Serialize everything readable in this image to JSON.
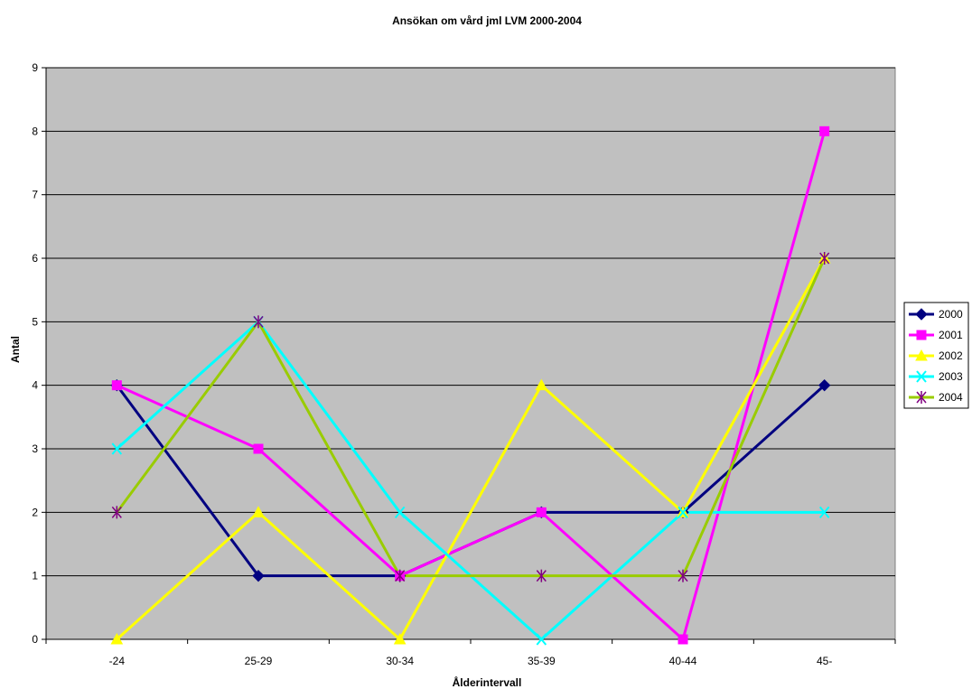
{
  "chart_data": {
    "type": "line",
    "title": "Ansökan om vård jml LVM 2000-2004",
    "xlabel": "Ålderintervall",
    "ylabel": "Antal",
    "categories": [
      "-24",
      "25-29",
      "30-34",
      "35-39",
      "40-44",
      "45-"
    ],
    "ylim": [
      0,
      9
    ],
    "yticks": [
      0,
      1,
      2,
      3,
      4,
      5,
      6,
      7,
      8,
      9
    ],
    "grid": true,
    "legend_position": "right",
    "plot_background": "#c0c0c0",
    "series": [
      {
        "name": "2000",
        "color": "#000080",
        "marker": "diamond",
        "values": [
          4,
          1,
          1,
          2,
          2,
          4
        ]
      },
      {
        "name": "2001",
        "color": "#ff00ff",
        "marker": "square",
        "values": [
          4,
          3,
          1,
          2,
          0,
          8
        ]
      },
      {
        "name": "2002",
        "color": "#ffff00",
        "marker": "triangle",
        "values": [
          0,
          2,
          0,
          4,
          2,
          6
        ]
      },
      {
        "name": "2003",
        "color": "#00ffff",
        "marker": "x",
        "values": [
          3,
          5,
          2,
          0,
          2,
          2
        ]
      },
      {
        "name": "2004",
        "color": "#99cc00",
        "marker": "star",
        "markerColor": "#800080",
        "values": [
          2,
          5,
          1,
          1,
          1,
          6
        ]
      }
    ]
  }
}
